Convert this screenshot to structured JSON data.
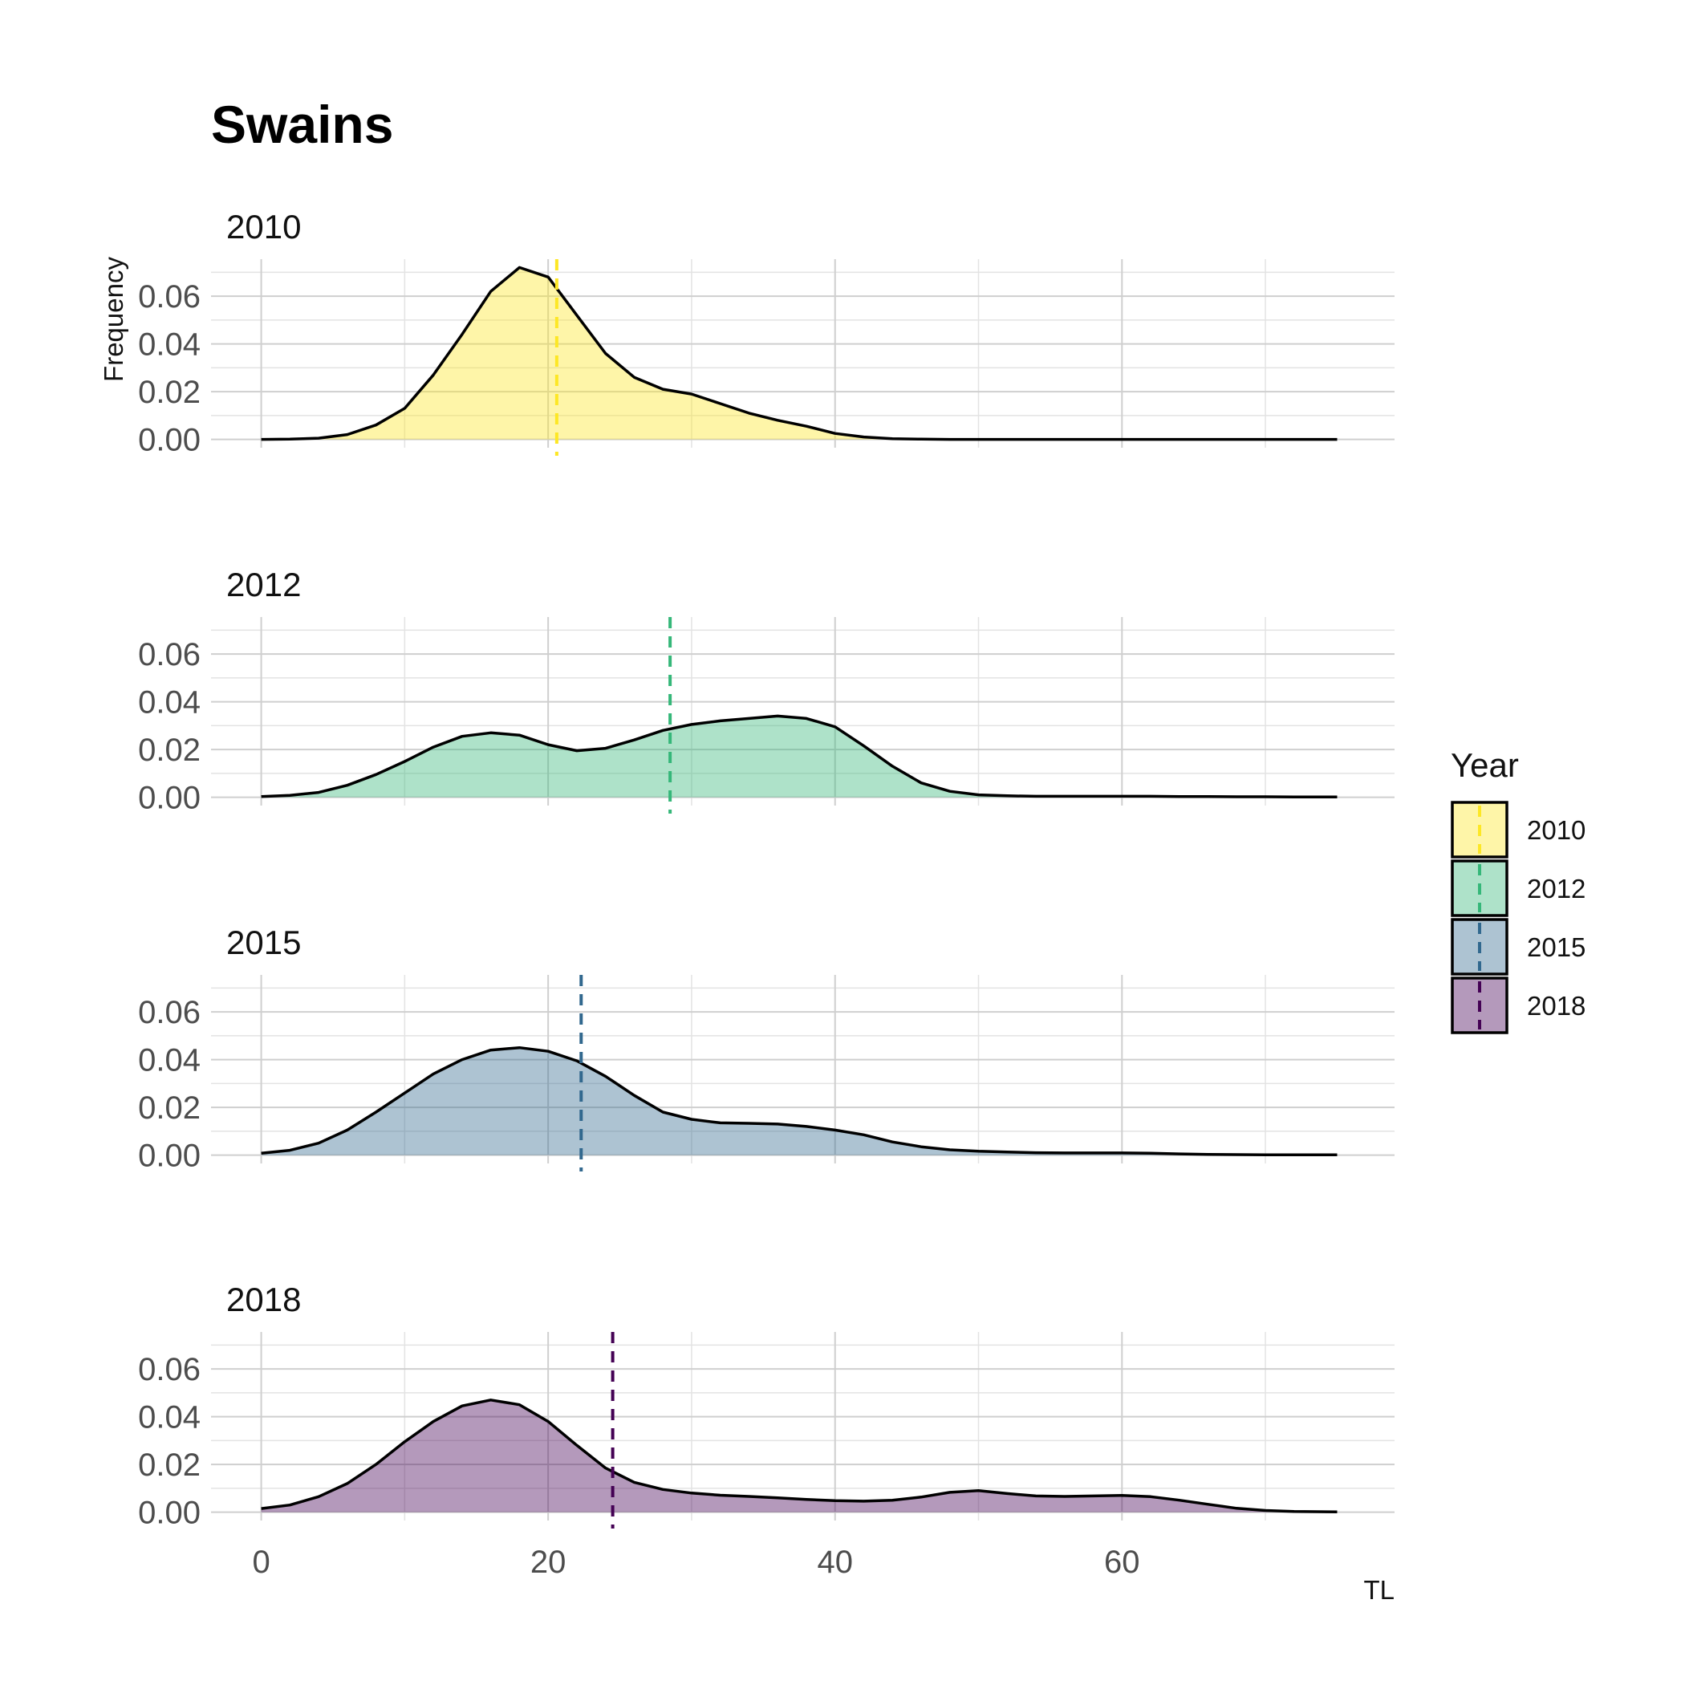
{
  "chart_data": {
    "type": "area",
    "title": "Swains",
    "xlabel": "TL",
    "ylabel": "Frequency",
    "xlim": [
      -3.5,
      79
    ],
    "ylim": [
      -0.0035,
      0.0755
    ],
    "x_ticks": [
      0,
      20,
      40,
      60
    ],
    "x_tick_labels": [
      "0",
      "20",
      "40",
      "60"
    ],
    "y_ticks": [
      0.0,
      0.02,
      0.04,
      0.06
    ],
    "y_tick_labels": [
      "0.00",
      "0.02",
      "0.04",
      "0.06"
    ],
    "grid": true,
    "legend": {
      "title": "Year",
      "position": "right"
    },
    "x": [
      0,
      2,
      4,
      6,
      8,
      10,
      12,
      14,
      16,
      18,
      20,
      22,
      24,
      26,
      28,
      30,
      32,
      34,
      36,
      38,
      40,
      42,
      44,
      46,
      48,
      50,
      52,
      54,
      56,
      58,
      60,
      62,
      64,
      66,
      68,
      70,
      72,
      75
    ],
    "series": [
      {
        "name": "2010",
        "color": "#fde725",
        "mean": 20.6,
        "values": [
          0.0,
          0.0001,
          0.0005,
          0.002,
          0.006,
          0.013,
          0.027,
          0.044,
          0.062,
          0.072,
          0.068,
          0.052,
          0.036,
          0.026,
          0.021,
          0.019,
          0.015,
          0.011,
          0.008,
          0.0055,
          0.0025,
          0.001,
          0.0003,
          0.0001,
          0.0,
          0.0,
          0.0,
          0.0,
          0.0,
          0.0,
          0.0,
          0.0,
          0.0,
          0.0,
          0.0,
          0.0,
          0.0,
          0.0
        ]
      },
      {
        "name": "2012",
        "color": "#35b779",
        "mean": 28.5,
        "values": [
          0.0003,
          0.0008,
          0.002,
          0.005,
          0.0095,
          0.015,
          0.021,
          0.0255,
          0.027,
          0.026,
          0.022,
          0.0195,
          0.0205,
          0.024,
          0.028,
          0.0305,
          0.032,
          0.033,
          0.034,
          0.033,
          0.0295,
          0.0215,
          0.013,
          0.006,
          0.0025,
          0.001,
          0.0006,
          0.0004,
          0.0004,
          0.0004,
          0.0004,
          0.0004,
          0.0003,
          0.0003,
          0.0002,
          0.0002,
          0.0001,
          0.0001
        ]
      },
      {
        "name": "2015",
        "color": "#31688e",
        "mean": 22.3,
        "values": [
          0.0008,
          0.002,
          0.005,
          0.0105,
          0.018,
          0.026,
          0.034,
          0.04,
          0.044,
          0.045,
          0.0435,
          0.0395,
          0.033,
          0.025,
          0.018,
          0.015,
          0.0135,
          0.0133,
          0.013,
          0.012,
          0.0105,
          0.0085,
          0.0055,
          0.0035,
          0.0022,
          0.0016,
          0.0013,
          0.001,
          0.0009,
          0.0009,
          0.0009,
          0.0008,
          0.0005,
          0.0003,
          0.0002,
          0.0001,
          0.0001,
          0.0001
        ]
      },
      {
        "name": "2018",
        "color": "#440154",
        "mean": 24.5,
        "values": [
          0.0015,
          0.003,
          0.0065,
          0.012,
          0.02,
          0.0295,
          0.038,
          0.0445,
          0.047,
          0.045,
          0.038,
          0.028,
          0.0185,
          0.0125,
          0.0095,
          0.008,
          0.0071,
          0.0066,
          0.006,
          0.0053,
          0.0048,
          0.0046,
          0.005,
          0.0063,
          0.0083,
          0.009,
          0.0078,
          0.0068,
          0.0066,
          0.0068,
          0.007,
          0.0065,
          0.005,
          0.0033,
          0.0016,
          0.0007,
          0.0003,
          0.0001
        ]
      }
    ]
  }
}
